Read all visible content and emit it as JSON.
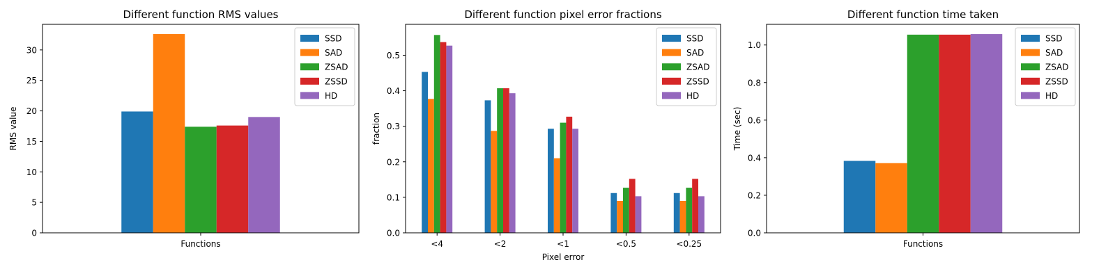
{
  "colors": {
    "SSD": "#1f77b4",
    "SAD": "#ff7f0e",
    "ZSAD": "#2ca02c",
    "ZSSD": "#d62728",
    "HD": "#9467bd"
  },
  "chart_data": [
    {
      "type": "bar",
      "title": "Different function RMS values",
      "xlabel": "",
      "ylabel": "RMS value",
      "categories": [
        "Functions"
      ],
      "ylim": [
        0,
        34.2
      ],
      "yticks": [
        0,
        5,
        10,
        15,
        20,
        25,
        30
      ],
      "legend": "top-right",
      "series": [
        {
          "name": "SSD",
          "values": [
            19.9
          ]
        },
        {
          "name": "SAD",
          "values": [
            32.6
          ]
        },
        {
          "name": "ZSAD",
          "values": [
            17.4
          ]
        },
        {
          "name": "ZSSD",
          "values": [
            17.6
          ]
        },
        {
          "name": "HD",
          "values": [
            19.0
          ]
        }
      ]
    },
    {
      "type": "bar",
      "title": "Different function pixel error fractions",
      "xlabel": "Pixel error",
      "ylabel": "fraction",
      "categories": [
        "<4",
        "<2",
        "<1",
        "<0.5",
        "<0.25"
      ],
      "ylim": [
        0,
        0.587
      ],
      "yticks": [
        0.0,
        0.1,
        0.2,
        0.3,
        0.4,
        0.5
      ],
      "legend": "top-right",
      "series": [
        {
          "name": "SSD",
          "values": [
            0.453,
            0.373,
            0.293,
            0.112,
            0.112
          ]
        },
        {
          "name": "SAD",
          "values": [
            0.377,
            0.287,
            0.21,
            0.09,
            0.09
          ]
        },
        {
          "name": "ZSAD",
          "values": [
            0.557,
            0.407,
            0.31,
            0.127,
            0.127
          ]
        },
        {
          "name": "ZSSD",
          "values": [
            0.537,
            0.407,
            0.327,
            0.152,
            0.152
          ]
        },
        {
          "name": "HD",
          "values": [
            0.527,
            0.393,
            0.293,
            0.103,
            0.103
          ]
        }
      ]
    },
    {
      "type": "bar",
      "title": "Different function time taken",
      "xlabel": "",
      "ylabel": "Time (sec)",
      "categories": [
        "Functions"
      ],
      "ylim": [
        0,
        1.11
      ],
      "yticks": [
        0.0,
        0.2,
        0.4,
        0.6,
        0.8,
        1.0
      ],
      "legend": "top-right",
      "series": [
        {
          "name": "SSD",
          "values": [
            0.383
          ]
        },
        {
          "name": "SAD",
          "values": [
            0.371
          ]
        },
        {
          "name": "ZSAD",
          "values": [
            1.055
          ]
        },
        {
          "name": "ZSSD",
          "values": [
            1.055
          ]
        },
        {
          "name": "HD",
          "values": [
            1.058
          ]
        }
      ]
    }
  ]
}
